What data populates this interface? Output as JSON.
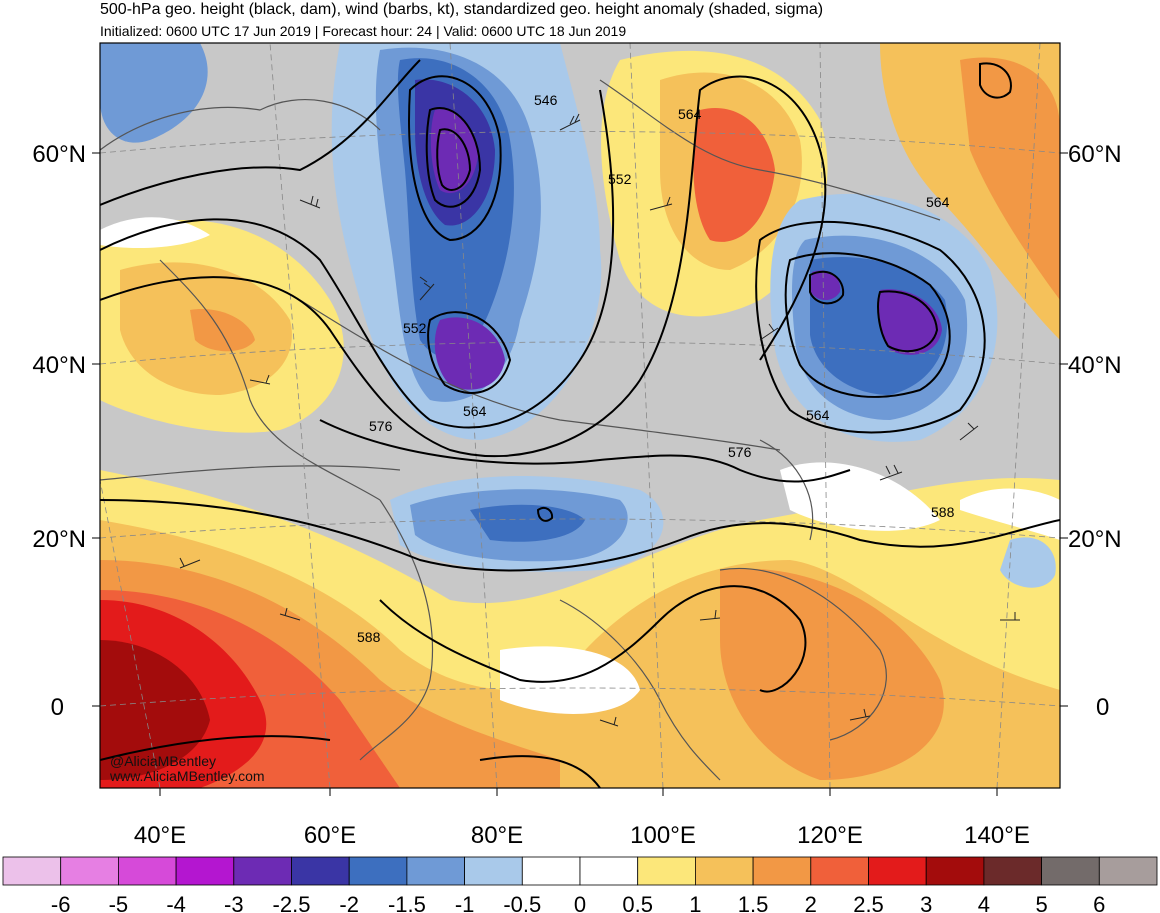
{
  "header": {
    "title": "500-hPa geo. height (black, dam), wind (barbs, kt), standardized geo. height anomaly (shaded, sigma)",
    "subtitle": "Initialized: 0600 UTC 17 Jun 2019 | Forecast hour: 24 | Valid: 0600 UTC 18 Jun 2019"
  },
  "axes": {
    "lat_labels": [
      "60°N",
      "40°N",
      "20°N",
      "0"
    ],
    "lon_labels": [
      "40°E",
      "60°E",
      "80°E",
      "100°E",
      "120°E",
      "140°E"
    ]
  },
  "contour_labels": [
    "546",
    "552",
    "552",
    "564",
    "564",
    "564",
    "564",
    "576",
    "576",
    "588",
    "588"
  ],
  "credit": {
    "handle": "@AliciaMBentley",
    "site": "www.AliciaMBentley.com"
  },
  "colorbar": {
    "labels": [
      "-6",
      "-5",
      "-4",
      "-3",
      "-2.5",
      "-2",
      "-1.5",
      "-1",
      "-0.5",
      "0",
      "0.5",
      "1",
      "1.5",
      "2",
      "2.5",
      "3",
      "4",
      "5",
      "6"
    ],
    "colors": [
      "#ecc1ea",
      "#e67fe3",
      "#d64ad9",
      "#b416d0",
      "#6d2bb4",
      "#3a35a5",
      "#3d6fbf",
      "#6f9ad6",
      "#a9c9ea",
      "#ffffff",
      "#ffffff",
      "#fce77a",
      "#f5c15a",
      "#f29845",
      "#f0603a",
      "#e31b1b",
      "#a30c0c",
      "#6b2a2a",
      "#736b6a",
      "#a79d9c"
    ]
  },
  "palette": {
    "ocean_gray": "#c8c8c8",
    "contour": "#000000",
    "border": "#555555"
  }
}
